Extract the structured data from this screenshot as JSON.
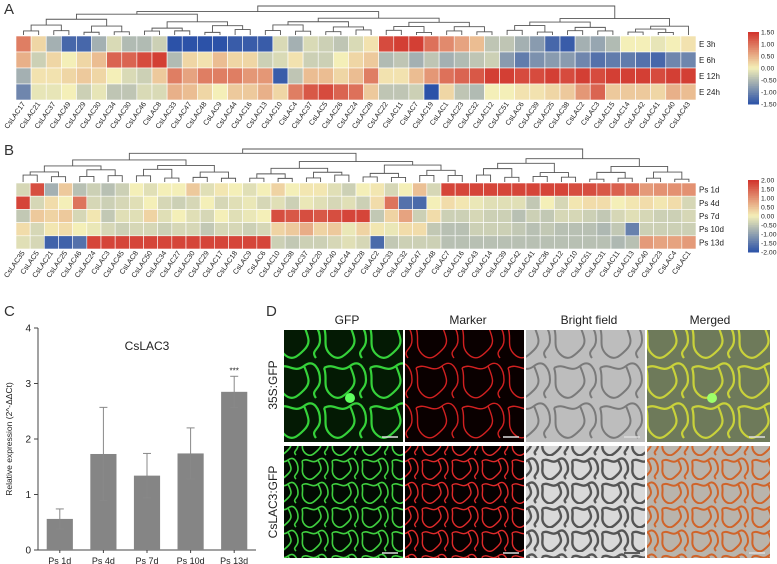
{
  "panels": {
    "A": "A",
    "B": "B",
    "C": "C",
    "D": "D"
  },
  "colors": {
    "low": "#2c52a8",
    "mid": "#f4efb8",
    "high": "#d1322b",
    "bar": "#858585",
    "error": "#888888"
  },
  "chart_data": [
    {
      "type": "heatmap",
      "panel": "A",
      "rows": [
        "E 3h",
        "E 6h",
        "E 12h",
        "E 24h"
      ],
      "columns": [
        "CsLAC17",
        "CsLAC21",
        "CsLAC37",
        "CsLAC49",
        "CsLAC29",
        "CsLAC30",
        "CsLAC34",
        "CsLAC30",
        "CsLAC46",
        "CsLAC8",
        "CsLAC33",
        "CsLAC47",
        "CsLAC48",
        "CsLAC9",
        "CsLAC44",
        "CsLAC16",
        "CsLAC13",
        "CsLAC10",
        "CsLAC4",
        "CsLAC37",
        "CsLAC5",
        "CsLAC26",
        "CsLAC24",
        "CsLAC28",
        "CsLAC22",
        "CsLAC11",
        "CsLAC7",
        "CsLAC19",
        "CsLAC1",
        "CsLAC23",
        "CsLAC32",
        "CsLAC12",
        "CsLAC51",
        "CsLAC6",
        "CsLAC39",
        "CsLAC25",
        "CsLAC38",
        "CsLAC2",
        "CsLAC3",
        "CsLAC15",
        "CsLAC14",
        "CsLAC42",
        "CsLAC41",
        "CsLAC40",
        "CsLAC43"
      ],
      "values": [
        [
          0.9,
          0.2,
          -0.6,
          -1.3,
          -1.3,
          -0.6,
          -0.2,
          -0.5,
          -0.5,
          -0.3,
          -1.5,
          -1.5,
          -1.5,
          -1.5,
          -1.4,
          -1.4,
          -1.4,
          -0.2,
          -0.6,
          -0.2,
          -0.3,
          -0.4,
          -0.2,
          0.1,
          1.3,
          1.4,
          1.4,
          1.0,
          0.8,
          0.6,
          0.4,
          -0.4,
          -0.4,
          -0.6,
          -0.8,
          -1.3,
          -1.4,
          -0.6,
          -0.7,
          -0.5,
          0.0,
          0.0,
          -0.1,
          0.0,
          0.1
        ],
        [
          0.5,
          -0.3,
          0.2,
          0.0,
          0.2,
          0.4,
          1.1,
          1.1,
          1.3,
          1.4,
          -0.5,
          0.2,
          0.1,
          0.4,
          0.2,
          0.2,
          -0.3,
          -0.2,
          0.1,
          -0.3,
          -0.3,
          0.0,
          0.2,
          0.3,
          -0.5,
          -0.4,
          -0.6,
          -0.4,
          -0.6,
          -0.5,
          -0.4,
          -0.3,
          -0.8,
          -1.1,
          -0.9,
          -0.8,
          -0.8,
          -1.0,
          -1.2,
          -1.1,
          -1.1,
          -1.2,
          -1.3,
          -1.0,
          -1.0
        ],
        [
          -0.6,
          0.1,
          0.1,
          0.2,
          0.3,
          0.2,
          0.0,
          -0.2,
          -0.3,
          0.3,
          0.9,
          0.6,
          0.9,
          0.9,
          0.9,
          0.7,
          0.7,
          -1.4,
          -0.4,
          0.4,
          0.4,
          0.2,
          0.4,
          0.9,
          0.1,
          0.1,
          0.4,
          0.7,
          1.0,
          1.1,
          1.2,
          1.4,
          1.4,
          1.3,
          1.3,
          1.4,
          1.3,
          1.4,
          1.3,
          1.4,
          1.4,
          1.4,
          1.3,
          1.4,
          1.4
        ],
        [
          -1.0,
          -0.1,
          -0.1,
          0.0,
          -0.3,
          -0.1,
          -0.4,
          -0.4,
          -0.2,
          -0.2,
          0.5,
          0.4,
          0.2,
          0.0,
          0.3,
          0.3,
          0.5,
          0.2,
          0.9,
          1.2,
          1.3,
          1.1,
          1.0,
          0.3,
          -0.4,
          -0.4,
          -0.3,
          -1.5,
          0.2,
          -0.4,
          -0.5,
          0.0,
          0.0,
          0.1,
          0.1,
          0.2,
          0.3,
          0.7,
          1.1,
          0.3,
          0.3,
          0.3,
          0.2,
          0.5,
          0.4
        ]
      ],
      "scale_ticks": [
        "1.50",
        "1.00",
        "0.50",
        "0.00",
        "-0.50",
        "-1.00",
        "-1.50"
      ],
      "range": [
        -1.5,
        1.5
      ]
    },
    {
      "type": "heatmap",
      "panel": "B",
      "rows": [
        "Ps 1d",
        "Ps 4d",
        "Ps 7d",
        "Ps 10d",
        "Ps 13d"
      ],
      "columns": [
        "CsLAC35",
        "CsLAC5",
        "CsLAC21",
        "CsLAC25",
        "CsLAC46",
        "CsLAC24",
        "CsLAC3",
        "CsLAC45",
        "CsLAC8",
        "CsLAC50",
        "CsLAC34",
        "CsLAC27",
        "CsLAC30",
        "CsLAC29",
        "CsLAC17",
        "CsLAC18",
        "CsLAC9",
        "CsLAC6",
        "CsLAC10",
        "CsLAC38",
        "CsLAC37",
        "CsLAC20",
        "CsLAC40",
        "CsLAC44",
        "CsLAC28",
        "CsLAC2",
        "CsLAC33",
        "CsLAC32",
        "CsLAC47",
        "CsLAC48",
        "CsLAC7",
        "CsLAC16",
        "CsLAC43",
        "CsLAC14",
        "CsLAC39",
        "CsLAC42",
        "CsLAC41",
        "CsLAC36",
        "CsLAC12",
        "CsLAC10",
        "CsLAC51",
        "CsLAC31",
        "CsLAC11",
        "CsLAC13",
        "CsLAC40",
        "CsLAC23",
        "CsLAC4",
        "CsLAC1"
      ],
      "values": [
        [
          -0.3,
          1.7,
          -0.8,
          0.4,
          -0.6,
          -0.4,
          -0.6,
          -0.4,
          0.0,
          -0.2,
          0.0,
          0.0,
          0.4,
          -0.2,
          0.1,
          0.0,
          -0.2,
          0.0,
          0.3,
          0.0,
          0.1,
          0.1,
          -0.2,
          -0.4,
          0.0,
          0.1,
          -0.3,
          0.0,
          0.5,
          -0.3,
          1.8,
          1.8,
          1.8,
          1.8,
          1.8,
          1.8,
          1.8,
          1.8,
          1.8,
          1.7,
          1.7,
          1.6,
          1.5,
          1.4,
          0.9,
          1.0,
          1.0,
          1.0
        ],
        [
          1.8,
          -0.3,
          0.2,
          0.0,
          1.3,
          -0.3,
          -0.4,
          -0.3,
          -0.2,
          0.0,
          -0.3,
          -0.4,
          -0.3,
          0.0,
          -0.3,
          -0.2,
          -0.1,
          -0.3,
          -0.2,
          -0.4,
          -0.1,
          -0.2,
          -0.3,
          -0.2,
          -0.4,
          0.2,
          1.3,
          -1.6,
          -1.7,
          0.0,
          0.2,
          0.1,
          -0.1,
          -0.2,
          -0.2,
          -0.2,
          -0.5,
          0.0,
          -0.3,
          0.1,
          0.2,
          0.2,
          0.0,
          0.1,
          0.2,
          0.1,
          0.2,
          -0.3
        ],
        [
          -0.5,
          0.4,
          0.3,
          0.4,
          -0.3,
          0.1,
          -0.5,
          -0.2,
          -0.2,
          0.3,
          -0.2,
          0.0,
          -0.2,
          -0.3,
          0.0,
          -0.2,
          -0.1,
          0.0,
          1.7,
          1.6,
          1.7,
          1.6,
          1.7,
          1.8,
          1.8,
          -0.5,
          0.3,
          0.8,
          -0.4,
          0.2,
          -0.4,
          -0.4,
          -0.3,
          -0.4,
          -0.4,
          -0.6,
          -0.4,
          -0.5,
          -0.3,
          -0.3,
          -0.4,
          -0.5,
          -0.3,
          -0.2,
          -0.3,
          -0.4,
          -0.4,
          -0.3
        ],
        [
          0.2,
          -0.3,
          0.1,
          0.2,
          0.0,
          -0.1,
          -0.3,
          -0.4,
          -0.3,
          -0.3,
          -0.4,
          -0.3,
          -0.3,
          -0.5,
          -0.3,
          -0.3,
          -0.4,
          -0.3,
          0.3,
          0.4,
          0.7,
          0.3,
          0.4,
          -0.1,
          0.3,
          0.1,
          -0.1,
          0.2,
          0.2,
          -0.5,
          -0.6,
          -0.6,
          -0.4,
          -0.4,
          -0.4,
          -0.5,
          -0.6,
          -0.5,
          -0.6,
          -0.6,
          -0.6,
          -0.7,
          -0.5,
          -1.4,
          -0.4,
          -0.4,
          -0.4,
          -0.4
        ],
        [
          -0.2,
          -0.3,
          -1.8,
          -1.8,
          -1.6,
          1.8,
          1.8,
          1.8,
          1.8,
          1.8,
          1.8,
          1.8,
          1.8,
          1.8,
          1.8,
          1.8,
          1.8,
          1.8,
          -0.4,
          -0.5,
          -0.4,
          -0.4,
          -0.3,
          -0.2,
          -0.3,
          -1.7,
          -0.5,
          -0.4,
          -0.4,
          -0.4,
          -0.6,
          -0.6,
          -0.6,
          -0.6,
          -0.6,
          -0.6,
          -0.6,
          -0.6,
          -0.6,
          -0.6,
          -0.6,
          -0.6,
          -0.7,
          -0.6,
          0.9,
          0.8,
          0.8,
          0.9
        ]
      ],
      "scale_ticks": [
        "2.00",
        "1.50",
        "1.00",
        "0.50",
        "0.00",
        "-0.50",
        "-1.00",
        "-1.50",
        "-2.00"
      ],
      "range": [
        -2,
        2
      ]
    },
    {
      "type": "bar",
      "panel": "C",
      "title": "CsLAC3",
      "ylabel": "Relative expression (2^-ΔΔCt)",
      "categories": [
        "Ps 1d",
        "Ps 4d",
        "Ps 7d",
        "Ps 10d",
        "Ps 13d"
      ],
      "values": [
        0.56,
        1.73,
        1.34,
        1.74,
        2.85
      ],
      "errors": [
        0.18,
        0.84,
        0.4,
        0.46,
        0.28
      ],
      "significance": [
        "",
        "",
        "",
        "",
        "***"
      ],
      "ylim": [
        0,
        4
      ],
      "yticks": [
        "0",
        "1",
        "2",
        "3",
        "4"
      ]
    }
  ],
  "microscopy": {
    "columns": [
      "GFP",
      "Marker",
      "Bright field",
      "Merged"
    ],
    "rows": [
      "35S:GFP",
      "CsLAC3:GFP"
    ]
  }
}
